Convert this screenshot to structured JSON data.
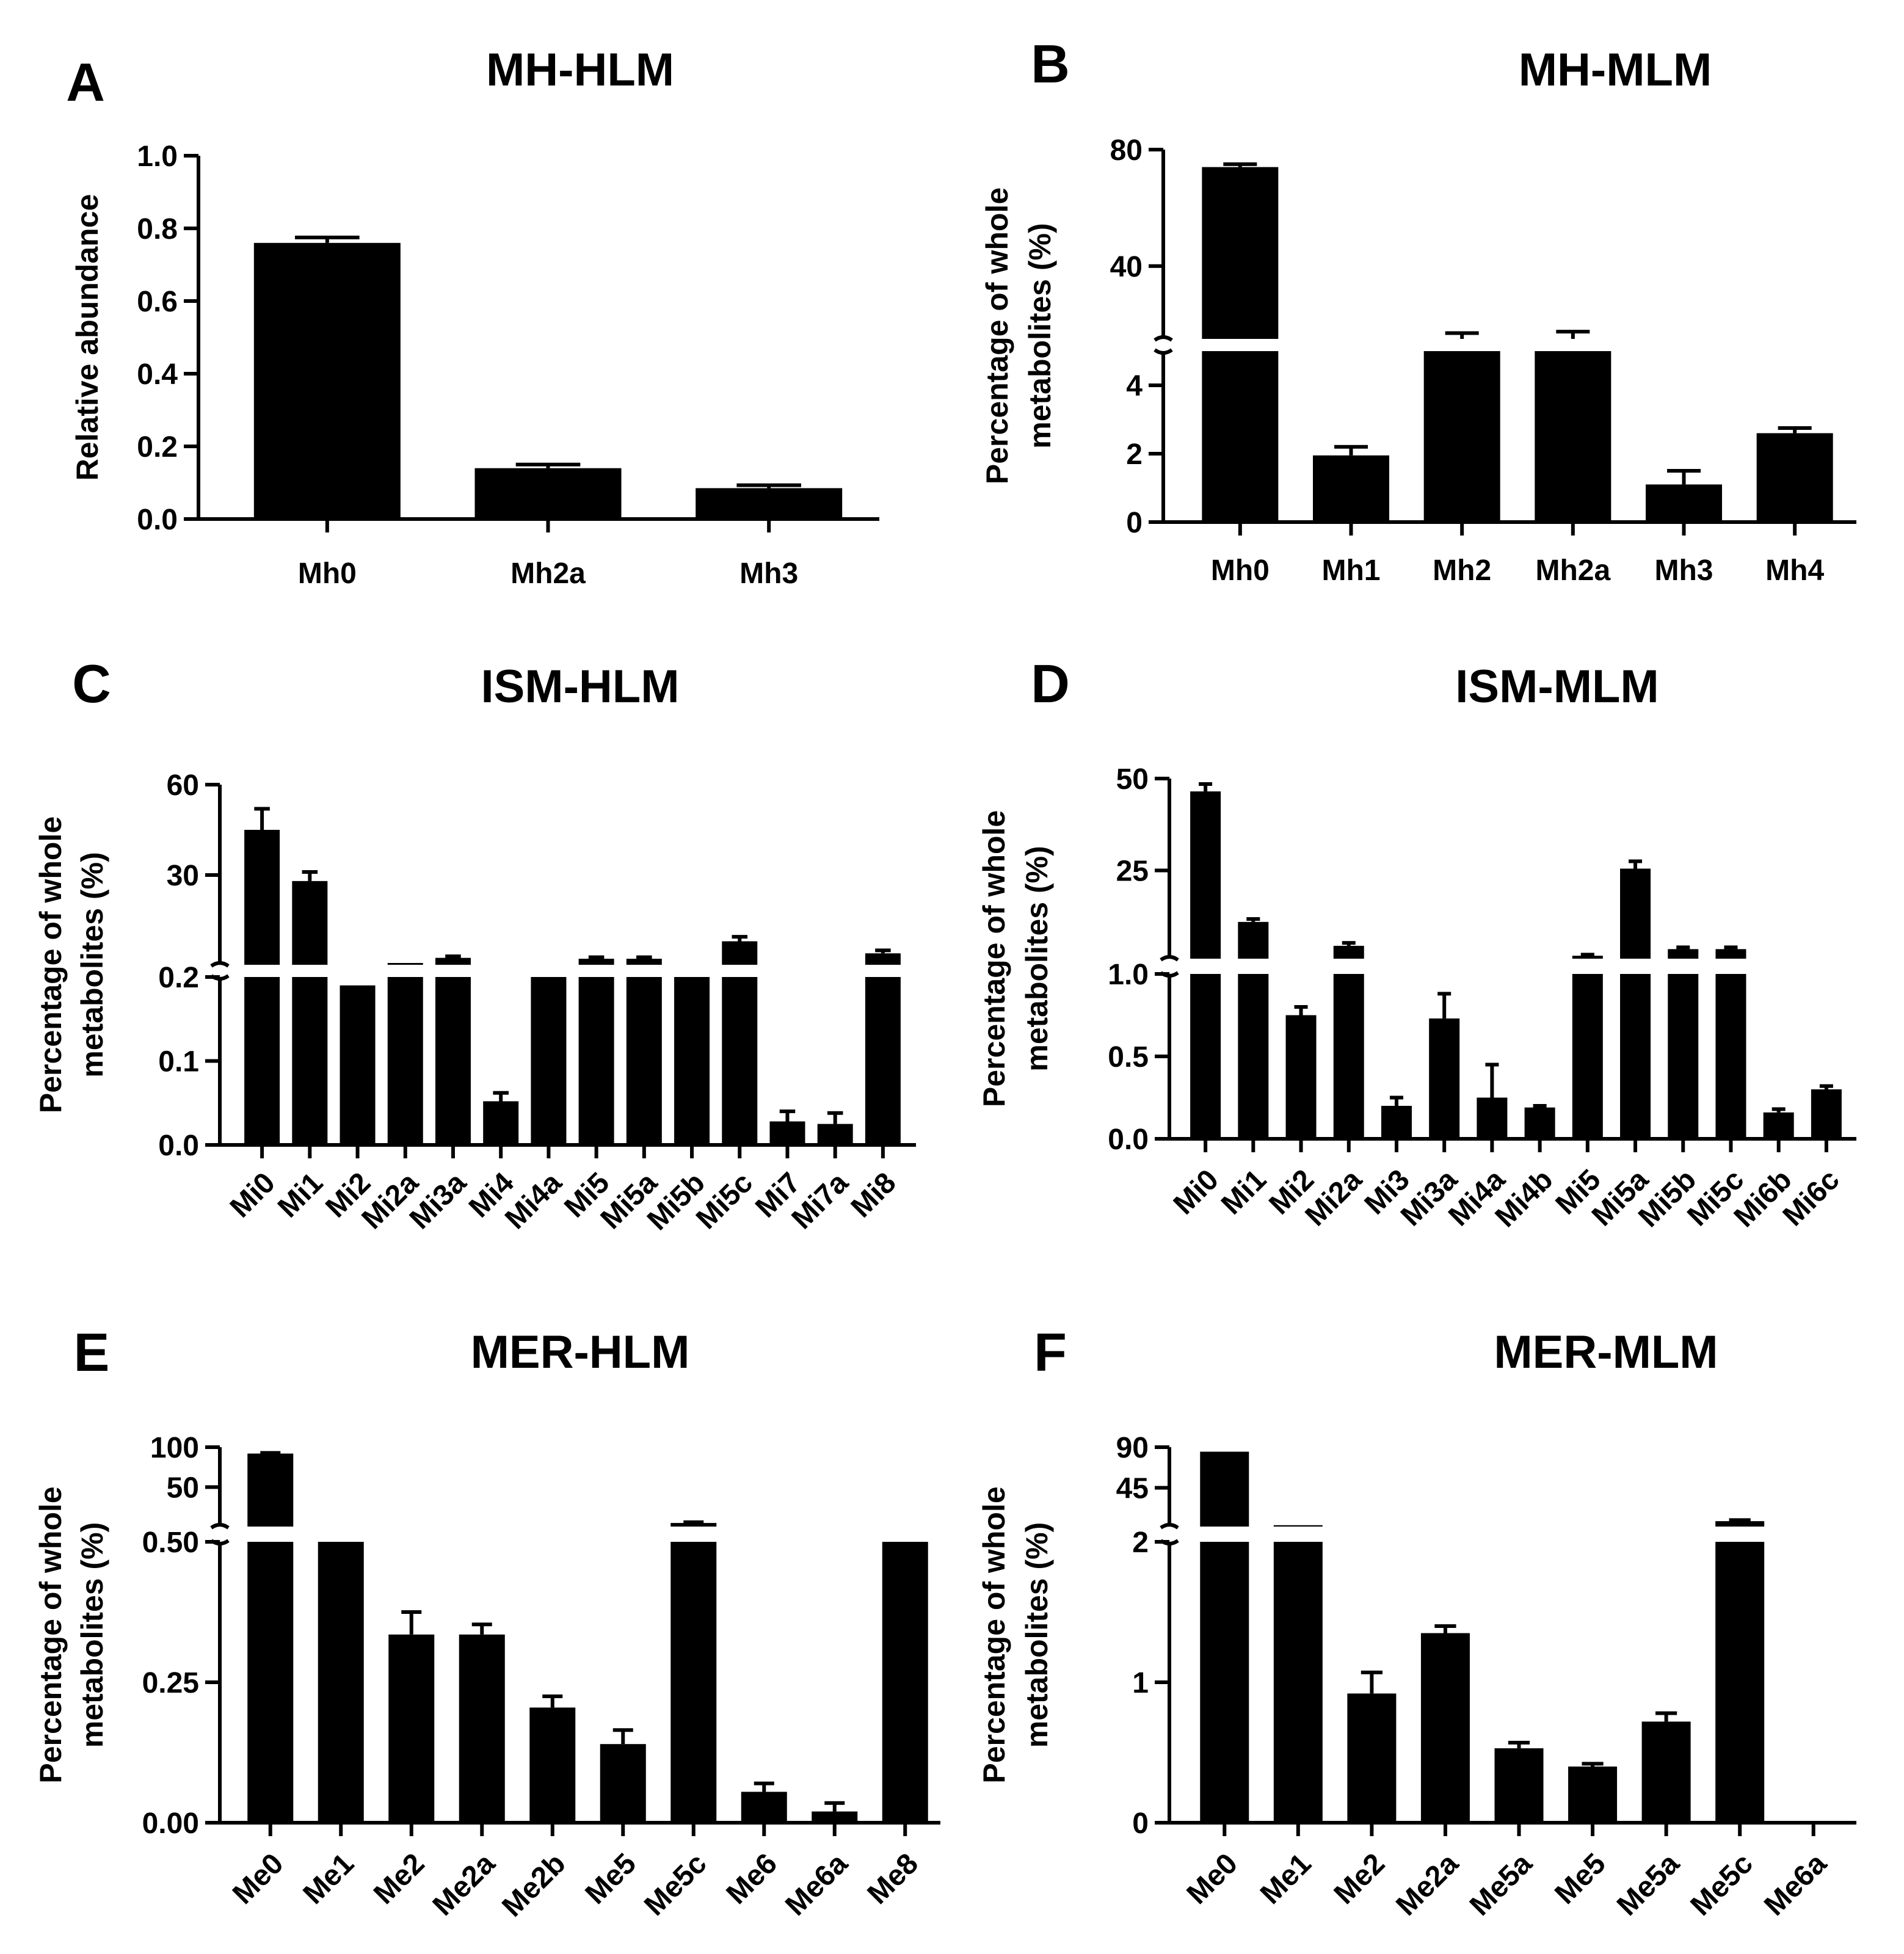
{
  "figure_colors": {
    "bar": "#000000",
    "background": "#ffffff"
  },
  "chart_data": [
    {
      "panel": "A",
      "title": "MH-HLM",
      "type": "bar",
      "ylabel": [
        "Relative abundance"
      ],
      "categories": [
        "Mh0",
        "Mh2a",
        "Mh3"
      ],
      "values": [
        0.76,
        0.14,
        0.085
      ],
      "errors": [
        0.015,
        0.01,
        0.008
      ],
      "ylim": [
        0,
        1.0
      ],
      "yticks": [
        0.0,
        0.2,
        0.4,
        0.6,
        0.8,
        1.0
      ],
      "ytick_labels": [
        "0.0",
        "0.2",
        "0.4",
        "0.6",
        "0.8",
        "1.0"
      ],
      "tick_rotation": 0
    },
    {
      "panel": "B",
      "title": "MH-MLM",
      "type": "bar",
      "broken_axis": true,
      "ylabel": [
        "Percentage of whole",
        "metabolites (%)"
      ],
      "categories": [
        "Mh0",
        "Mh1",
        "Mh2",
        "Mh2a",
        "Mh3",
        "Mh4"
      ],
      "values": [
        74,
        1.95,
        15,
        15,
        1.1,
        2.6
      ],
      "errors": [
        1,
        0.25,
        2,
        2.5,
        0.4,
        0.15
      ],
      "lower_range": [
        0,
        5
      ],
      "upper_range": [
        15,
        80
      ],
      "lower_ticks": [
        0,
        2,
        4
      ],
      "lower_tick_labels": [
        "0",
        "2",
        "4"
      ],
      "upper_ticks": [
        40,
        80
      ],
      "upper_tick_labels": [
        "40",
        "80"
      ],
      "tick_rotation": 0
    },
    {
      "panel": "C",
      "title": "ISM-HLM",
      "type": "bar",
      "broken_axis": true,
      "ylabel": [
        "Percentage of whole",
        "metabolites (%)"
      ],
      "categories": [
        "Mi0",
        "Mi1",
        "Mi2",
        "Mi2a",
        "Mi3a",
        "Mi4",
        "Mi4a",
        "Mi5",
        "Mi5a",
        "Mi5b",
        "Mi5c",
        "Mi7",
        "Mi7a",
        "Mi8"
      ],
      "values": [
        45,
        28,
        0.19,
        0.8,
        2.5,
        0.052,
        0.2,
        2.2,
        2.2,
        0.2,
        8,
        0.028,
        0.025,
        4
      ],
      "errors": [
        7,
        3,
        0,
        0.2,
        0.5,
        0.01,
        0,
        0.5,
        0.5,
        0,
        1.5,
        0.012,
        0.013,
        1
      ],
      "lower_range": [
        0,
        0.2
      ],
      "upper_range": [
        0.2,
        60
      ],
      "lower_ticks": [
        0.0,
        0.1,
        0.2
      ],
      "lower_tick_labels": [
        "0.0",
        "0.1",
        "0.2"
      ],
      "upper_ticks": [
        30,
        60
      ],
      "upper_tick_labels": [
        "30",
        "60"
      ],
      "tick_rotation": -45
    },
    {
      "panel": "D",
      "title": "ISM-MLM",
      "type": "bar",
      "broken_axis": true,
      "ylabel": [
        "Percentage of whole",
        "metabolites (%)"
      ],
      "categories": [
        "Mi0",
        "Mi1",
        "Mi2",
        "Mi2a",
        "Mi3",
        "Mi3a",
        "Mi4a",
        "Mi4b",
        "Mi5",
        "Mi5a",
        "Mi5b",
        "Mi5c",
        "Mi6b",
        "Mi6c"
      ],
      "values": [
        46.5,
        11,
        0.75,
        4.5,
        0.2,
        0.73,
        0.25,
        0.19,
        1.8,
        25.5,
        3.6,
        3.6,
        0.16,
        0.3
      ],
      "errors": [
        2,
        0.8,
        0.05,
        0.8,
        0.05,
        0.15,
        0.2,
        0.01,
        0.3,
        2,
        0.5,
        0.5,
        0.02,
        0.02
      ],
      "lower_range": [
        0,
        1.0
      ],
      "upper_range": [
        1.0,
        50
      ],
      "lower_ticks": [
        0.0,
        0.5,
        1.0
      ],
      "lower_tick_labels": [
        "0.0",
        "0.5",
        "1.0"
      ],
      "upper_ticks": [
        25,
        50
      ],
      "upper_tick_labels": [
        "25",
        "50"
      ],
      "tick_rotation": -45
    },
    {
      "panel": "E",
      "title": "MER-HLM",
      "type": "bar",
      "broken_axis": true,
      "ylabel": [
        "Percentage of whole",
        "metabolites (%)"
      ],
      "categories": [
        "Me0",
        "Me1",
        "Me2",
        "Me2a",
        "Me2b",
        "Me5",
        "Me5c",
        "Me6",
        "Me6a",
        "Me8"
      ],
      "values": [
        92,
        0.5,
        0.335,
        0.335,
        0.205,
        0.14,
        5,
        0.055,
        0.02,
        0.5
      ],
      "errors": [
        0.8,
        0,
        0.04,
        0.018,
        0.02,
        0.025,
        1,
        0.015,
        0.015,
        0
      ],
      "lower_range": [
        0,
        0.5
      ],
      "upper_range": [
        0.5,
        100
      ],
      "lower_ticks": [
        0.0,
        0.25,
        0.5
      ],
      "lower_tick_labels": [
        "0.00",
        "0.25",
        "0.50"
      ],
      "upper_ticks": [
        50,
        100
      ],
      "upper_tick_labels": [
        "50",
        "100"
      ],
      "tick_rotation": -45
    },
    {
      "panel": "F",
      "title": "MER-MLM",
      "type": "bar",
      "broken_axis": true,
      "ylabel": [
        "Percentage of whole",
        "metabolites (%)"
      ],
      "categories": [
        "Me0",
        "Me1",
        "Me2",
        "Me2a",
        "Me5a",
        "Me5",
        "Me5a",
        "Me5c",
        "Me6a"
      ],
      "values": [
        85,
        3.5,
        0.92,
        1.35,
        0.53,
        0.4,
        0.72,
        8,
        0.01
      ],
      "errors": [
        0.6,
        0.2,
        0.15,
        0.05,
        0.04,
        0.02,
        0.06,
        1.2,
        0
      ],
      "lower_range": [
        0,
        2
      ],
      "upper_range": [
        2,
        90
      ],
      "lower_ticks": [
        0,
        1,
        2
      ],
      "lower_tick_labels": [
        "0",
        "1",
        "2"
      ],
      "upper_ticks": [
        45,
        90
      ],
      "upper_tick_labels": [
        "45",
        "90"
      ],
      "tick_rotation": -45
    }
  ]
}
